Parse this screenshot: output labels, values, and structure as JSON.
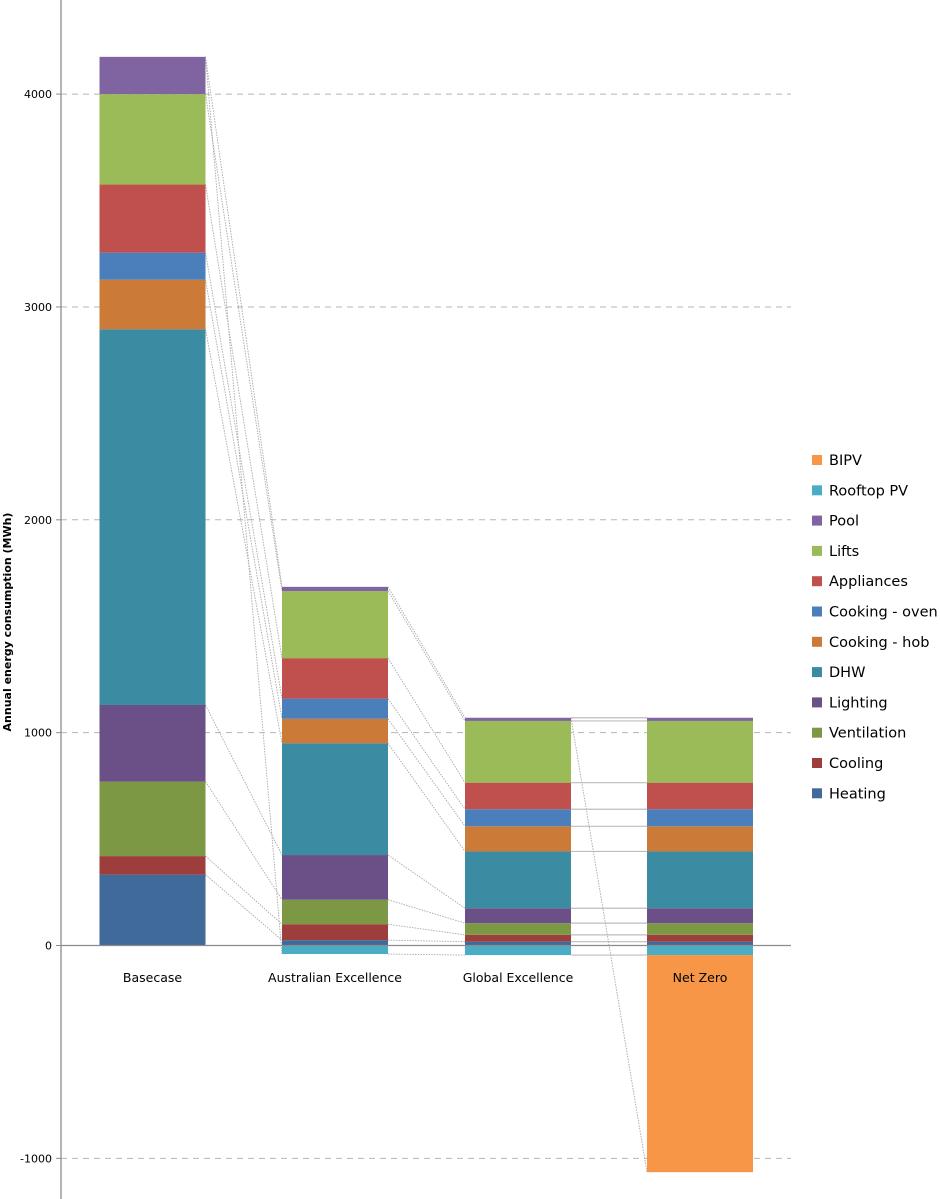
{
  "chart_data": {
    "type": "bar",
    "stacked": true,
    "title": "",
    "xlabel": "",
    "ylabel": "Annual energy consumption  (MWh)",
    "ylim": [
      -1100,
      4250
    ],
    "yticks": [
      -1000,
      0,
      1000,
      2000,
      3000,
      4000
    ],
    "grid": true,
    "legend_position": "right",
    "categories": [
      "Basecase",
      "Australian Excellence",
      "Global Excellence",
      "Net Zero"
    ],
    "series": [
      {
        "name": "Heating",
        "color": "#3F6A9A",
        "values": [
          333,
          25,
          18,
          18
        ]
      },
      {
        "name": "Cooling",
        "color": "#9D3E3C",
        "values": [
          87,
          75,
          32,
          32
        ]
      },
      {
        "name": "Ventilation",
        "color": "#7D9845",
        "values": [
          350,
          115,
          55,
          55
        ]
      },
      {
        "name": "Lighting",
        "color": "#6A5087",
        "values": [
          360,
          210,
          70,
          70
        ]
      },
      {
        "name": "DHW",
        "color": "#3B8BA2",
        "values": [
          1765,
          525,
          267,
          267
        ]
      },
      {
        "name": "Cooking - hob",
        "color": "#CC7A37",
        "values": [
          233,
          115,
          118,
          118
        ]
      },
      {
        "name": "Cooking - oven",
        "color": "#4B7FBB",
        "values": [
          127,
          95,
          80,
          80
        ]
      },
      {
        "name": "Appliances",
        "color": "#BF504D",
        "values": [
          320,
          190,
          125,
          125
        ]
      },
      {
        "name": "Lifts",
        "color": "#9BBB59",
        "values": [
          425,
          315,
          290,
          290
        ]
      },
      {
        "name": "Pool",
        "color": "#8064A2",
        "values": [
          175,
          20,
          15,
          15
        ]
      },
      {
        "name": "Rooftop PV",
        "color": "#4BACC6",
        "values": [
          0,
          -40,
          -45,
          -45
        ]
      },
      {
        "name": "BIPV",
        "color": "#F79646",
        "values": [
          0,
          0,
          0,
          -1020
        ]
      }
    ],
    "legend_order": [
      "BIPV",
      "Rooftop PV",
      "Pool",
      "Lifts",
      "Appliances",
      "Cooking - oven",
      "Cooking - hob",
      "DHW",
      "Lighting",
      "Ventilation",
      "Cooling",
      "Heating"
    ],
    "series_lines": true
  }
}
